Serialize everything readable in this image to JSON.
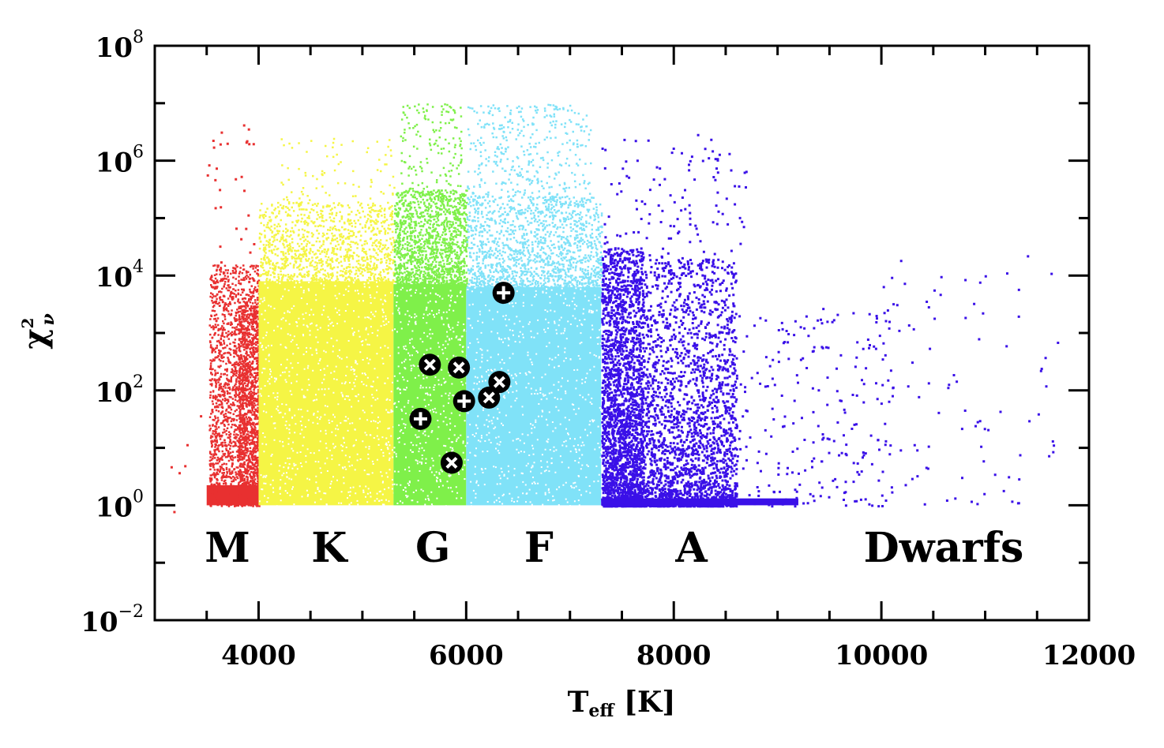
{
  "chart_data": {
    "type": "scatter",
    "title": "",
    "xlabel": {
      "main": "T",
      "sub": "eff",
      "rest": " [K]"
    },
    "ylabel": {
      "main": "χ",
      "sup": "2",
      "sub": "ν"
    },
    "xlim": [
      3000,
      12000
    ],
    "ylim_log10": [
      -2,
      8
    ],
    "y_scale": "log",
    "x_ticks": [
      4000,
      6000,
      8000,
      10000,
      12000
    ],
    "x_tick_labels": [
      "4000",
      "6000",
      "8000",
      "10000",
      "12000"
    ],
    "y_ticks_log10": [
      -2,
      0,
      2,
      4,
      6,
      8
    ],
    "y_tick_labels": [
      {
        "base": "10",
        "exp": "−2"
      },
      {
        "base": "10",
        "exp": "0"
      },
      {
        "base": "10",
        "exp": "2"
      },
      {
        "base": "10",
        "exp": "4"
      },
      {
        "base": "10",
        "exp": "6"
      },
      {
        "base": "10",
        "exp": "8"
      }
    ],
    "grid": false,
    "class_labels": [
      {
        "text": "M",
        "teff": 3700
      },
      {
        "text": "K",
        "teff": 4680
      },
      {
        "text": "G",
        "teff": 5680
      },
      {
        "text": "F",
        "teff": 6700
      },
      {
        "text": "A",
        "teff": 8170
      },
      {
        "text": "Dwarfs",
        "teff": 10600
      }
    ],
    "populations": [
      {
        "spectral_class": "M",
        "teff_range": [
          3500,
          4000
        ],
        "color": "#e83030"
      },
      {
        "spectral_class": "K",
        "teff_range": [
          4000,
          5300
        ],
        "color": "#f5f545"
      },
      {
        "spectral_class": "G",
        "teff_range": [
          5300,
          6000
        ],
        "color": "#7ff04a"
      },
      {
        "spectral_class": "F",
        "teff_range": [
          6000,
          7300
        ],
        "color": "#80e2f8"
      },
      {
        "spectral_class": "A",
        "teff_range": [
          7300,
          11700
        ],
        "color": "#3a10e8"
      }
    ],
    "highlighted": [
      {
        "teff": 5650,
        "chi2": 280,
        "marker": "x"
      },
      {
        "teff": 5930,
        "chi2": 250,
        "marker": "x"
      },
      {
        "teff": 6320,
        "chi2": 140,
        "marker": "x"
      },
      {
        "teff": 6220,
        "chi2": 75,
        "marker": "x"
      },
      {
        "teff": 5860,
        "chi2": 5.5,
        "marker": "x"
      },
      {
        "teff": 6360,
        "chi2": 5000,
        "marker": "+"
      },
      {
        "teff": 5980,
        "chi2": 65,
        "marker": "+"
      },
      {
        "teff": 5560,
        "chi2": 32,
        "marker": "+"
      }
    ]
  }
}
